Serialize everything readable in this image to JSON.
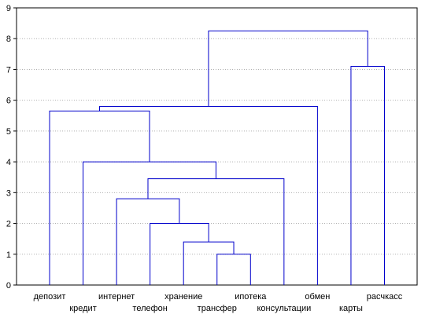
{
  "chart_data": {
    "type": "dendrogram",
    "title": "",
    "xlabel": "",
    "ylabel": "",
    "ylim": [
      0,
      9
    ],
    "yticks": [
      0,
      1,
      2,
      3,
      4,
      5,
      6,
      7,
      8,
      9
    ],
    "grid": true,
    "leaves": [
      "депозит",
      "кредит",
      "интернет",
      "телефон",
      "хранение",
      "трансфер",
      "ипотека",
      "консультации",
      "обмен",
      "карты",
      "расчкасс"
    ],
    "merges": [
      {
        "left": "трансфер",
        "right": "ипотека",
        "height": 1.0
      },
      {
        "left": "хранение",
        "right": "трансфер+ипотека",
        "height": 1.4
      },
      {
        "left": "телефон",
        "right": "хранение+трансфер+ипотека",
        "height": 2.0
      },
      {
        "left": "интернет",
        "right": "телефон+хранение+трансфер+ипотека",
        "height": 2.8
      },
      {
        "left": "интернет…ипотека",
        "right": "консультации",
        "height": 3.45
      },
      {
        "left": "кредит",
        "right": "интернет…консультации",
        "height": 4.0
      },
      {
        "left": "депозит",
        "right": "кредит…консультации",
        "height": 5.65
      },
      {
        "left": "депозит…консультации",
        "right": "обмен",
        "height": 5.8
      },
      {
        "left": "карты",
        "right": "расчкасс",
        "height": 7.1
      },
      {
        "left": "депозит…обмен",
        "right": "карты+расчкасс",
        "height": 8.25
      }
    ],
    "colors": {
      "lines": "#0000cc",
      "grid": "#b0b0b0",
      "axis": "#000000",
      "background": "#ffffff"
    }
  }
}
